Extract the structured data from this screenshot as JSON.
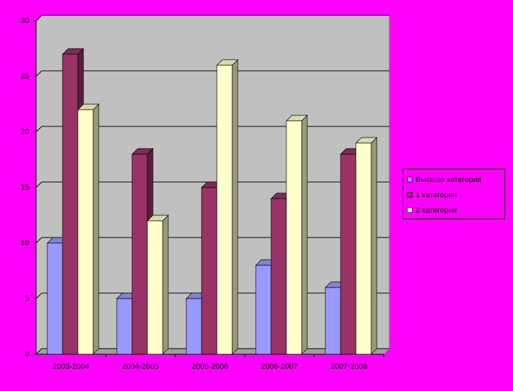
{
  "chart_data": {
    "type": "bar3d",
    "categories": [
      "2003-2004",
      "2004-2005",
      "2005-2006",
      "2006-2007",
      "2007-2008"
    ],
    "series": [
      {
        "name": "Высшая категория",
        "color": "#9999ff",
        "values": [
          10,
          5,
          5,
          8,
          6
        ]
      },
      {
        "name": "1 категория",
        "color": "#993366",
        "values": [
          27,
          18,
          15,
          14,
          18
        ]
      },
      {
        "name": "2 категория",
        "color": "#ffffcc",
        "values": [
          22,
          12,
          26,
          21,
          19
        ]
      }
    ],
    "ylim": [
      0,
      30
    ],
    "yticks": [
      0,
      5,
      10,
      15,
      20,
      25,
      30
    ],
    "grid": true,
    "legend": "right"
  }
}
